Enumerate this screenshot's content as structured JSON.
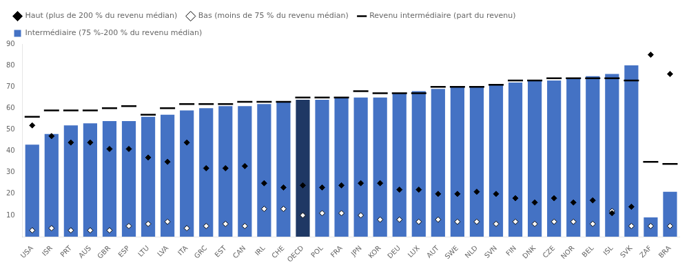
{
  "chart_data": {
    "type": "bar",
    "categories": [
      "USA",
      "ISR",
      "PRT",
      "AUS",
      "GBR",
      "ESP",
      "LTU",
      "LVA",
      "ITA",
      "GRC",
      "EST",
      "CAN",
      "IRL",
      "CHE",
      "OECD",
      "POL",
      "FRA",
      "JPN",
      "KOR",
      "DEU",
      "LUX",
      "AUT",
      "SWE",
      "NLD",
      "SVN",
      "FIN",
      "DNK",
      "CZE",
      "NOR",
      "BEL",
      "ISL",
      "SVK",
      "ZAF",
      "BRA"
    ],
    "series": [
      {
        "name": "Intermédiaire (75 %-200 % du revenu médian)",
        "type": "bar",
        "colors": [
          "#4472C4",
          "#4472C4",
          "#4472C4",
          "#4472C4",
          "#4472C4",
          "#4472C4",
          "#4472C4",
          "#4472C4",
          "#4472C4",
          "#4472C4",
          "#4472C4",
          "#4472C4",
          "#4472C4",
          "#4472C4",
          "#1F3864",
          "#4472C4",
          "#4472C4",
          "#4472C4",
          "#4472C4",
          "#4472C4",
          "#4472C4",
          "#4472C4",
          "#4472C4",
          "#4472C4",
          "#4472C4",
          "#4472C4",
          "#4472C4",
          "#4472C4",
          "#4472C4",
          "#4472C4",
          "#4472C4",
          "#4472C4",
          "#4472C4",
          "#4472C4"
        ],
        "values": [
          43,
          48,
          52,
          53,
          54,
          54,
          56,
          57,
          59,
          60,
          61,
          61,
          62,
          63,
          64,
          64,
          65,
          65,
          65,
          67,
          68,
          69,
          70,
          70,
          71,
          72,
          73,
          73,
          74,
          75,
          76,
          80,
          9,
          21
        ]
      },
      {
        "name": "Haut (plus de 200 % du revenu médian)",
        "type": "scatter",
        "marker": "diamond",
        "color": "#000000",
        "values": [
          52,
          47,
          44,
          44,
          41,
          41,
          37,
          35,
          44,
          32,
          32,
          33,
          25,
          23,
          24,
          23,
          24,
          25,
          25,
          22,
          22,
          20,
          20,
          21,
          20,
          18,
          16,
          18,
          16,
          17,
          11,
          14,
          85,
          76
        ]
      },
      {
        "name": "Bas (moins de 75 % du revenu médian)",
        "type": "scatter",
        "marker": "diamond",
        "color": "#FFFFFF",
        "values": [
          3,
          4,
          3,
          3,
          3,
          5,
          6,
          7,
          4,
          5,
          6,
          5,
          13,
          13,
          10,
          11,
          11,
          10,
          8,
          8,
          7,
          8,
          7,
          7,
          6,
          7,
          6,
          7,
          7,
          6,
          12,
          5,
          5,
          5
        ]
      },
      {
        "name": "Revenu intermédiaire (part du revenu)",
        "type": "scatter",
        "marker": "dash",
        "color": "#000000",
        "values": [
          56,
          59,
          59,
          59,
          60,
          61,
          57,
          60,
          62,
          62,
          62,
          63,
          63,
          63,
          65,
          65,
          65,
          68,
          67,
          67,
          67,
          70,
          70,
          70,
          71,
          73,
          73,
          74,
          74,
          74,
          74,
          73,
          35,
          34
        ]
      }
    ],
    "ylim": [
      0,
      90
    ],
    "yticks": [
      10,
      20,
      30,
      40,
      50,
      60,
      70,
      80,
      90
    ],
    "grid": false,
    "legend": "upper left"
  }
}
